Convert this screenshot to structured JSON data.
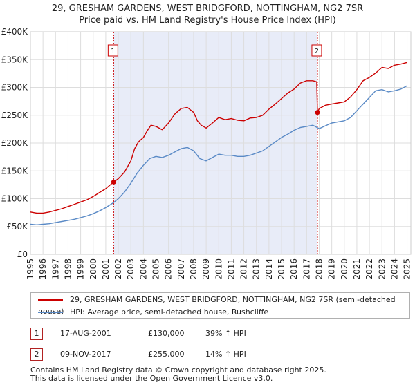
{
  "chart_data": {
    "type": "line",
    "title": "29, GRESHAM GARDENS, WEST BRIDGFORD, NOTTINGHAM, NG2 7SR",
    "subtitle": "Price paid vs. HM Land Registry's House Price Index (HPI)",
    "xlabel": "",
    "ylabel": "",
    "xlim": [
      1995,
      2025.3
    ],
    "ylim": [
      0,
      400000
    ],
    "y_ticks": [
      0,
      50000,
      100000,
      150000,
      200000,
      250000,
      300000,
      350000,
      400000
    ],
    "y_tick_labels": [
      "£0",
      "£50K",
      "£100K",
      "£150K",
      "£200K",
      "£250K",
      "£300K",
      "£350K",
      "£400K"
    ],
    "x_ticks": [
      1995,
      1996,
      1997,
      1998,
      1999,
      2000,
      2001,
      2002,
      2003,
      2004,
      2005,
      2006,
      2007,
      2008,
      2009,
      2010,
      2011,
      2012,
      2013,
      2014,
      2015,
      2016,
      2017,
      2018,
      2019,
      2020,
      2021,
      2022,
      2023,
      2024,
      2025
    ],
    "grid": true,
    "shaded_region": {
      "from": 2001.63,
      "to": 2017.86,
      "color": "#e8ecf8"
    },
    "series": [
      {
        "name": "29, GRESHAM GARDENS, WEST BRIDGFORD, NOTTINGHAM, NG2 7SR (semi-detached house)",
        "color": "#cc0000",
        "x": [
          1995,
          1995.5,
          1996,
          1996.5,
          1997,
          1997.5,
          1998,
          1998.5,
          1999,
          1999.5,
          2000,
          2000.5,
          2001,
          2001.63,
          2002,
          2002.5,
          2003,
          2003.3,
          2003.6,
          2004,
          2004.3,
          2004.6,
          2005,
          2005.5,
          2006,
          2006.5,
          2007,
          2007.5,
          2008,
          2008.3,
          2008.6,
          2009,
          2009.5,
          2010,
          2010.5,
          2011,
          2011.5,
          2012,
          2012.5,
          2013,
          2013.5,
          2014,
          2014.5,
          2015,
          2015.5,
          2016,
          2016.5,
          2017,
          2017.5,
          2017.8,
          2017.86,
          2018,
          2018.5,
          2019,
          2019.5,
          2020,
          2020.5,
          2021,
          2021.5,
          2022,
          2022.5,
          2023,
          2023.5,
          2024,
          2024.5,
          2025
        ],
        "values": [
          76000,
          74000,
          74000,
          76000,
          79000,
          82000,
          86000,
          90000,
          94000,
          98000,
          104000,
          111000,
          118000,
          130000,
          136000,
          148000,
          168000,
          190000,
          202000,
          210000,
          222000,
          232000,
          230000,
          224000,
          236000,
          252000,
          262000,
          264000,
          255000,
          240000,
          232000,
          227000,
          236000,
          246000,
          242000,
          244000,
          241000,
          240000,
          245000,
          246000,
          250000,
          261000,
          270000,
          280000,
          290000,
          297000,
          308000,
          312000,
          312000,
          310000,
          255000,
          262000,
          268000,
          270000,
          272000,
          274000,
          283000,
          296000,
          312000,
          318000,
          326000,
          336000,
          334000,
          340000,
          342000,
          345000
        ]
      },
      {
        "name": "HPI: Average price, semi-detached house, Rushcliffe",
        "color": "#5a8ac6",
        "x": [
          1995,
          1995.5,
          1996,
          1996.5,
          1997,
          1997.5,
          1998,
          1998.5,
          1999,
          1999.5,
          2000,
          2000.5,
          2001,
          2001.63,
          2002,
          2002.5,
          2003,
          2003.5,
          2004,
          2004.5,
          2005,
          2005.5,
          2006,
          2006.5,
          2007,
          2007.5,
          2008,
          2008.5,
          2009,
          2009.5,
          2010,
          2010.5,
          2011,
          2011.5,
          2012,
          2012.5,
          2013,
          2013.5,
          2014,
          2014.5,
          2015,
          2015.5,
          2016,
          2016.5,
          2017,
          2017.5,
          2018,
          2018.5,
          2019,
          2019.5,
          2020,
          2020.5,
          2021,
          2021.5,
          2022,
          2022.5,
          2023,
          2023.5,
          2024,
          2024.5,
          2025
        ],
        "values": [
          54000,
          53000,
          54000,
          55000,
          57000,
          59000,
          61000,
          63000,
          66000,
          69000,
          73000,
          78000,
          84000,
          93000,
          100000,
          112000,
          128000,
          146000,
          160000,
          172000,
          176000,
          174000,
          178000,
          184000,
          190000,
          192000,
          186000,
          172000,
          168000,
          174000,
          180000,
          178000,
          178000,
          176000,
          176000,
          178000,
          182000,
          186000,
          194000,
          202000,
          210000,
          216000,
          223000,
          228000,
          230000,
          232000,
          226000,
          231000,
          236000,
          238000,
          240000,
          246000,
          258000,
          270000,
          282000,
          294000,
          296000,
          292000,
          294000,
          297000,
          303000
        ]
      }
    ],
    "markers": [
      {
        "label": "1",
        "x": 2001.63,
        "y": 130000
      },
      {
        "label": "2",
        "x": 2017.86,
        "y": 255000
      }
    ]
  },
  "legend": {
    "entries": [
      {
        "label": "29, GRESHAM GARDENS, WEST BRIDGFORD, NOTTINGHAM, NG2 7SR (semi-detached house)",
        "color": "#cc0000"
      },
      {
        "label": "HPI: Average price, semi-detached house, Rushcliffe",
        "color": "#5a8ac6"
      }
    ]
  },
  "transactions": [
    {
      "num": "1",
      "date": "17-AUG-2001",
      "price": "£130,000",
      "hpi": "39% ↑ HPI"
    },
    {
      "num": "2",
      "date": "09-NOV-2017",
      "price": "£255,000",
      "hpi": "14% ↑ HPI"
    }
  ],
  "footer": {
    "line1": "Contains HM Land Registry data © Crown copyright and database right 2025.",
    "line2": "This data is licensed under the Open Government Licence v3.0."
  }
}
